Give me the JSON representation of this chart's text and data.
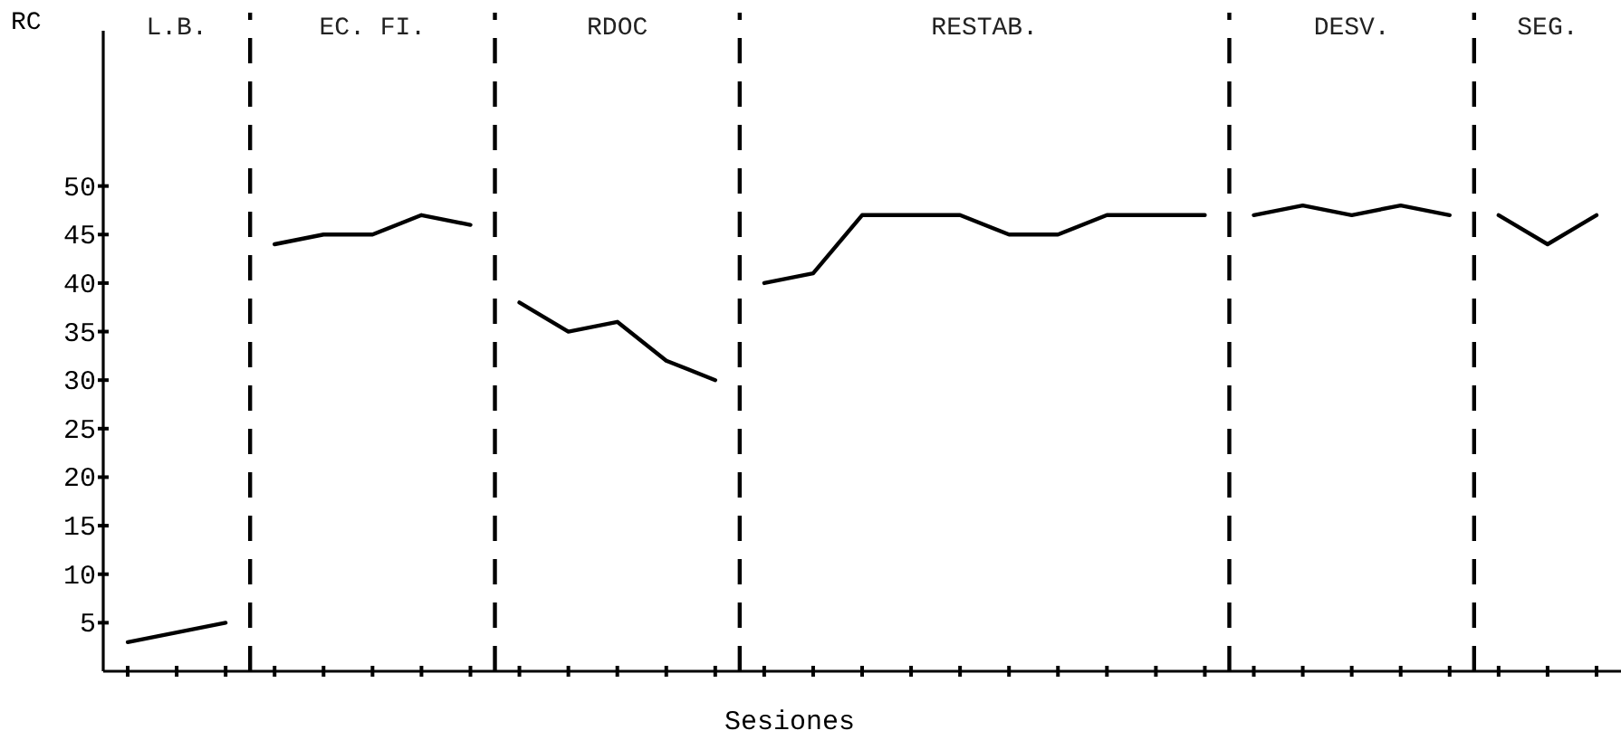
{
  "chart_data": {
    "type": "line",
    "xlabel": "Sesiones",
    "ylabel": "RC",
    "ylim": [
      0,
      66
    ],
    "annotations": [
      "L.B.",
      "EC. FI.",
      "RDOC",
      "RESTAB.",
      "DESV.",
      "SEG."
    ],
    "categories": [
      null,
      null,
      null,
      null,
      null,
      null,
      null,
      null,
      null,
      null,
      null,
      null,
      null,
      null,
      null,
      null,
      null,
      null,
      null,
      null,
      null,
      null,
      null,
      null,
      null,
      null,
      null,
      null,
      null,
      null,
      null
    ],
    "yticks": [
      5,
      10,
      15,
      20,
      25,
      30,
      35,
      40,
      45,
      50
    ],
    "grid": false,
    "marker": "none",
    "line_style": "solid",
    "series": [
      {
        "color": "#000000",
        "values": [
          3,
          4,
          5,
          null,
          null,
          null,
          null,
          null,
          null,
          null,
          null,
          null,
          null,
          null,
          null,
          null,
          null,
          null,
          null,
          null,
          null,
          null,
          null,
          null,
          null,
          null,
          null,
          null,
          null,
          null,
          null
        ]
      },
      {
        "color": "#000000",
        "values": [
          null,
          null,
          null,
          44,
          45,
          45,
          47,
          46,
          null,
          null,
          null,
          null,
          null,
          null,
          null,
          null,
          null,
          null,
          null,
          null,
          null,
          null,
          null,
          null,
          null,
          null,
          null,
          null,
          null,
          null,
          null
        ]
      },
      {
        "color": "#000000",
        "values": [
          null,
          null,
          null,
          null,
          null,
          null,
          null,
          null,
          38,
          35,
          36,
          32,
          30,
          null,
          null,
          null,
          null,
          null,
          null,
          null,
          null,
          null,
          null,
          null,
          null,
          null,
          null,
          null,
          null,
          null,
          null
        ]
      },
      {
        "color": "#000000",
        "values": [
          null,
          null,
          null,
          null,
          null,
          null,
          null,
          null,
          null,
          null,
          null,
          null,
          null,
          40,
          41,
          47,
          47,
          47,
          45,
          45,
          47,
          47,
          47,
          null,
          null,
          null,
          null,
          null,
          null,
          null,
          null
        ]
      },
      {
        "color": "#000000",
        "values": [
          null,
          null,
          null,
          null,
          null,
          null,
          null,
          null,
          null,
          null,
          null,
          null,
          null,
          null,
          null,
          null,
          null,
          null,
          null,
          null,
          null,
          null,
          null,
          47,
          48,
          47,
          48,
          47,
          null,
          null,
          null
        ]
      },
      {
        "color": "#000000",
        "values": [
          null,
          null,
          null,
          null,
          null,
          null,
          null,
          null,
          null,
          null,
          null,
          null,
          null,
          null,
          null,
          null,
          null,
          null,
          null,
          null,
          null,
          null,
          null,
          null,
          null,
          null,
          null,
          null,
          47,
          44,
          47
        ]
      }
    ]
  }
}
